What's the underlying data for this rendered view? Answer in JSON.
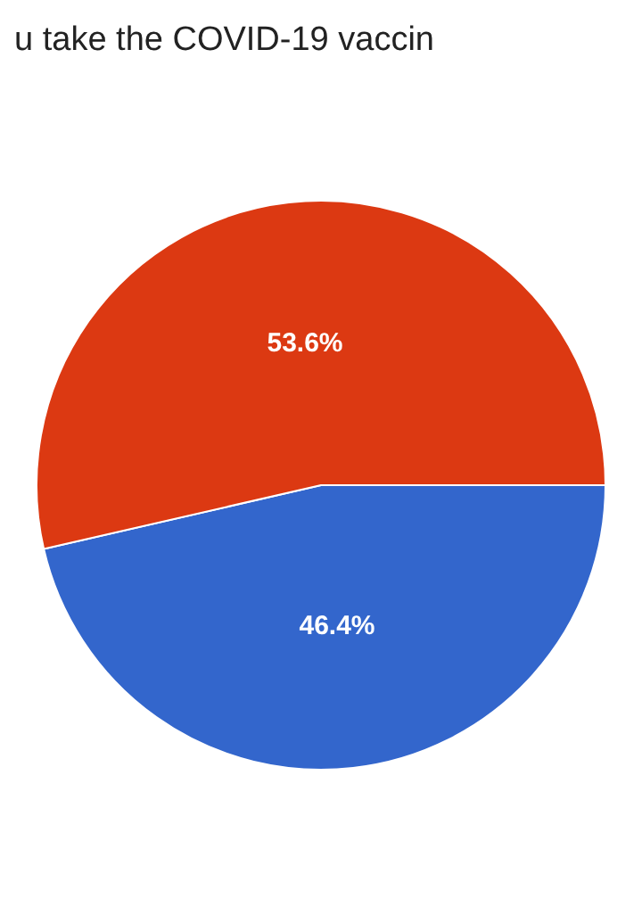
{
  "chart_data": {
    "type": "pie",
    "title": "u take the COVID-19 vaccin",
    "categories": [
      null,
      null
    ],
    "values": [
      46.4,
      53.6
    ],
    "colors": [
      "#3366cc",
      "#dc3912"
    ],
    "value_labels": [
      "46.4%",
      "53.6%"
    ],
    "legend": false
  }
}
